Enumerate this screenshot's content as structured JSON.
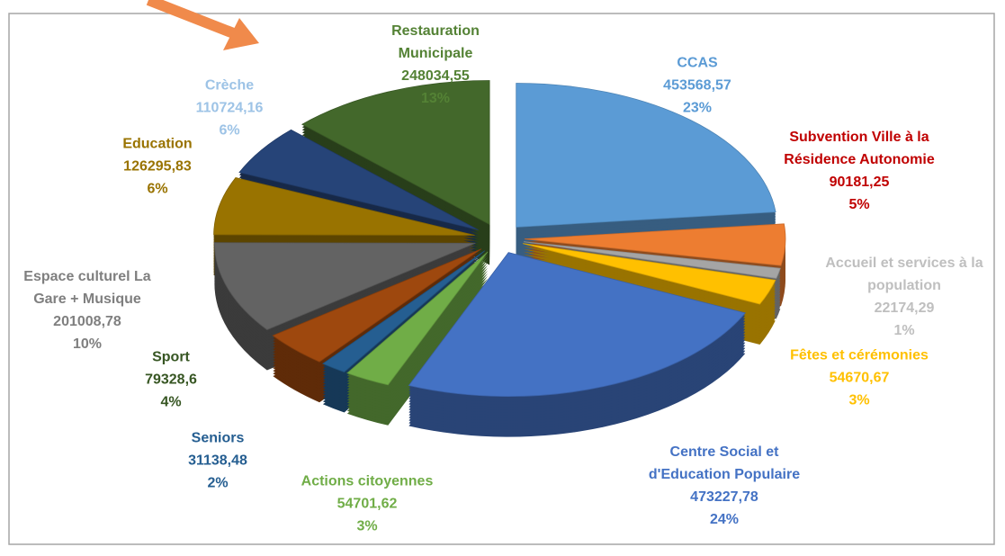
{
  "chart_data": {
    "type": "pie3d",
    "categories": [
      "CCAS",
      "Subvention Ville à la Résidence Autonomie",
      "Accueil et services à la population",
      "Fêtes et cérémonies",
      "Centre Social et d'Education Populaire",
      "Actions citoyennes",
      "Seniors",
      "Sport",
      "Espace culturel La Gare + Musique",
      "Education",
      "Crèche",
      "Restauration Municipale"
    ],
    "values": [
      453568.57,
      90181.25,
      22174.29,
      54670.67,
      473227.78,
      54701.62,
      31138.48,
      79328.6,
      201008.78,
      126295.83,
      110724.16,
      248034.55
    ],
    "value_labels": [
      "453568,57",
      "90181,25",
      "22174,29",
      "54670,67",
      "473227,78",
      "54701,62",
      "31138,48",
      "79328,6",
      "201008,78",
      "126295,83",
      "110724,16",
      "248034,55"
    ],
    "percents": [
      23,
      5,
      1,
      3,
      24,
      3,
      2,
      4,
      10,
      6,
      6,
      13
    ],
    "percent_labels": [
      "23%",
      "5%",
      "1%",
      "3%",
      "24%",
      "3%",
      "2%",
      "4%",
      "10%",
      "6%",
      "6%",
      "13%"
    ],
    "colors": [
      "#5b9bd5",
      "#ed7d31",
      "#a5a5a5",
      "#ffc000",
      "#4472c4",
      "#70ad47",
      "#255e91",
      "#9e480e",
      "#636363",
      "#997300",
      "#264478",
      "#43682b"
    ],
    "label_colors": [
      "#5b9bd5",
      "#c00000",
      "#bfbfbf",
      "#ffc000",
      "#4472c4",
      "#70ad47",
      "#255e91",
      "#375623",
      "#7f7f7f",
      "#997300",
      "#9dc3e6",
      "#548235"
    ],
    "legend": false
  }
}
